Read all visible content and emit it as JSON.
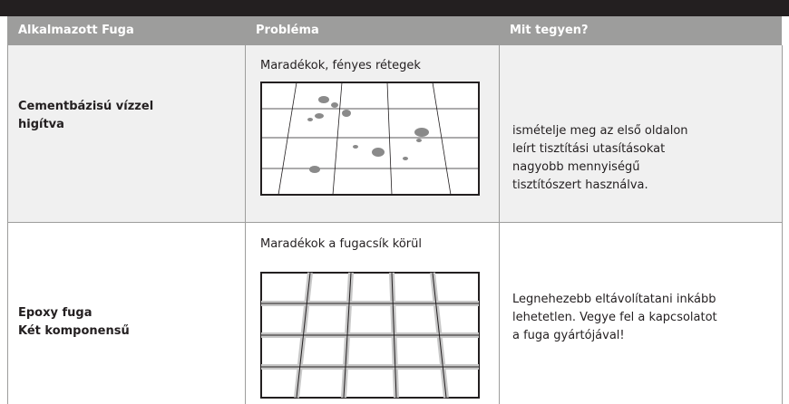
{
  "table": {
    "header": [
      "Alkalmazott Fuga",
      "Probléma",
      "Mit tegyen?"
    ],
    "rows": [
      {
        "grout": [
          "Cementbázisú vízzel",
          "higítva"
        ],
        "problem": "Maradékok, fényes rétegek",
        "action": [
          "ismételje meg az első oldalon",
          "leírt tisztítási utasításokat",
          "nagyobb mennyiségű",
          "tisztítószert használva."
        ]
      },
      {
        "grout": [
          "Epoxy fuga",
          "Két komponensű"
        ],
        "problem": "Maradékok a fugacsík körül",
        "action": [
          "Legnehezebb eltávolítatani inkább",
          "lehetetlen. Vegye fel a kapcsolatot",
          "a fuga gyártójával!"
        ]
      }
    ]
  }
}
